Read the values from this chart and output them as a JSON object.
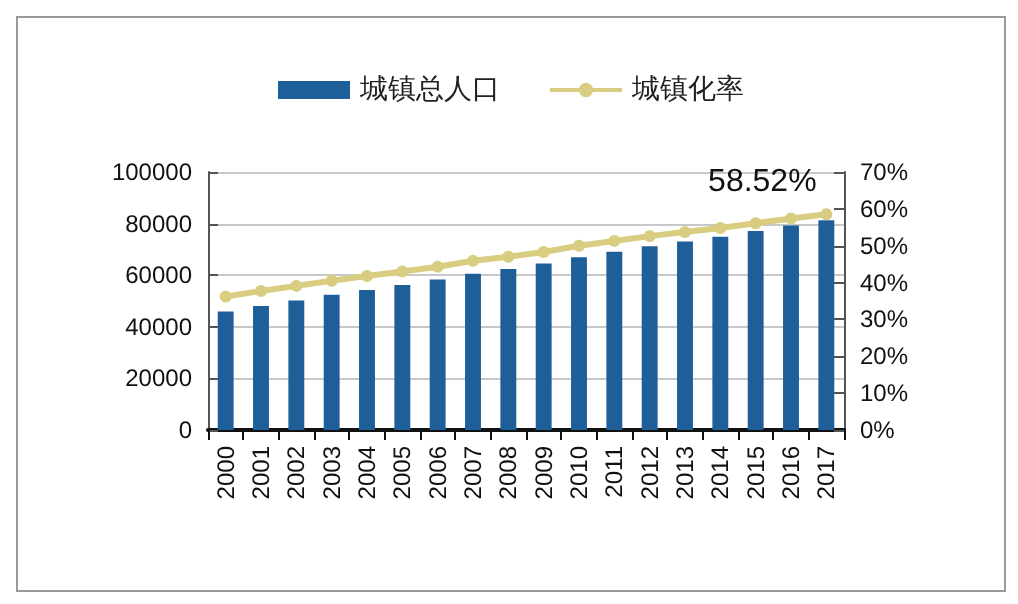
{
  "chart_data": {
    "type": "bar",
    "categories": [
      "2000",
      "2001",
      "2002",
      "2003",
      "2004",
      "2005",
      "2006",
      "2007",
      "2008",
      "2009",
      "2010",
      "2011",
      "2012",
      "2013",
      "2014",
      "2015",
      "2016",
      "2017"
    ],
    "series": [
      {
        "name": "城镇总人口",
        "color": "#1f5f99",
        "values": [
          45900,
          48100,
          50200,
          52400,
          54300,
          56200,
          58300,
          60600,
          62400,
          64500,
          67000,
          69100,
          71200,
          73100,
          74900,
          77100,
          79300,
          81300
        ]
      },
      {
        "name": "城镇化率",
        "type": "line",
        "axis": "y2",
        "color": "#d8cd80",
        "values": [
          36.2,
          37.7,
          39.1,
          40.5,
          41.8,
          43.0,
          44.3,
          45.9,
          47.0,
          48.3,
          50.0,
          51.3,
          52.6,
          53.7,
          54.8,
          56.1,
          57.4,
          58.52
        ],
        "value_labels": [
          null,
          null,
          null,
          null,
          null,
          null,
          null,
          null,
          null,
          null,
          null,
          null,
          null,
          null,
          null,
          null,
          null,
          "58.52%"
        ]
      }
    ],
    "ylim": [
      0,
      100000
    ],
    "yticks": [
      0,
      20000,
      40000,
      60000,
      80000,
      100000
    ],
    "y2lim": [
      0,
      70
    ],
    "y2ticks": [
      {
        "value": 0,
        "label": "0%"
      },
      {
        "value": 10,
        "label": "10%"
      },
      {
        "value": 20,
        "label": "20%"
      },
      {
        "value": 30,
        "label": "30%"
      },
      {
        "value": 40,
        "label": "40%"
      },
      {
        "value": 50,
        "label": "50%"
      },
      {
        "value": 60,
        "label": "60%"
      },
      {
        "value": 70,
        "label": "70%"
      }
    ],
    "grid": "y",
    "legend": "top",
    "marker": "circle"
  }
}
